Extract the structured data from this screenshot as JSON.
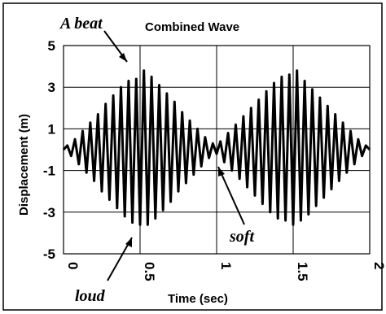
{
  "chart_data": {
    "type": "line",
    "title": "Combined Wave",
    "xlabel": "Time (sec)",
    "ylabel": "Displacement (m)",
    "xlim": [
      0,
      2
    ],
    "ylim": [
      -5,
      5
    ],
    "x_ticks": [
      0,
      0.5,
      1,
      1.5,
      2
    ],
    "x_tick_labels": [
      "0",
      "0.5",
      "1",
      "1.5",
      "2"
    ],
    "y_ticks": [
      5,
      3,
      1,
      -1,
      -3,
      -5
    ],
    "y_tick_labels": [
      "5",
      "3",
      "1",
      "-1",
      "-3",
      "-5"
    ],
    "grid": true,
    "series": [
      {
        "x": [
          0.0,
          0.025,
          0.05,
          0.075,
          0.1,
          0.125,
          0.15,
          0.175,
          0.2,
          0.225,
          0.25,
          0.275,
          0.3,
          0.325,
          0.35,
          0.375,
          0.4,
          0.425,
          0.45,
          0.475,
          0.5,
          0.525,
          0.55,
          0.575,
          0.6,
          0.625,
          0.65,
          0.675,
          0.7,
          0.725,
          0.75,
          0.775,
          0.8,
          0.825,
          0.85,
          0.875,
          0.9,
          0.925,
          0.95,
          0.975,
          1.0,
          1.025,
          1.05,
          1.075,
          1.1,
          1.125,
          1.15,
          1.175,
          1.2,
          1.225,
          1.25,
          1.275,
          1.3,
          1.325,
          1.35,
          1.375,
          1.4,
          1.425,
          1.45,
          1.475,
          1.5,
          1.525,
          1.55,
          1.575,
          1.6,
          1.625,
          1.65,
          1.675,
          1.7,
          1.725,
          1.75,
          1.775,
          1.8,
          1.825,
          1.85,
          1.875,
          1.9,
          1.925,
          1.95,
          1.975,
          2.0
        ],
        "y": [
          0.0,
          0.2,
          -0.3,
          0.5,
          -0.7,
          0.9,
          -1.1,
          1.3,
          -1.5,
          1.7,
          -2.0,
          2.2,
          -2.4,
          2.6,
          -2.8,
          3.0,
          -3.2,
          3.3,
          -3.5,
          3.4,
          -3.6,
          3.8,
          -3.6,
          3.5,
          -3.3,
          3.1,
          -2.9,
          2.7,
          -2.5,
          2.3,
          -2.0,
          1.8,
          -1.6,
          1.4,
          -1.2,
          1.0,
          -0.8,
          0.6,
          -0.4,
          0.3,
          -0.2,
          0.4,
          -0.6,
          0.8,
          -1.0,
          1.2,
          -1.4,
          1.6,
          -1.8,
          2.0,
          -2.2,
          2.4,
          -2.6,
          2.8,
          -3.0,
          3.2,
          -3.3,
          3.5,
          -3.4,
          3.6,
          -3.6,
          3.8,
          -3.4,
          3.3,
          -3.1,
          2.9,
          -2.7,
          2.5,
          -2.3,
          2.1,
          -1.9,
          1.7,
          -1.5,
          1.3,
          -1.1,
          0.9,
          -0.7,
          0.5,
          -0.3,
          0.2,
          0.0
        ]
      }
    ],
    "annotations": [
      {
        "text": "A beat",
        "x": 0.33,
        "y": 3.5
      },
      {
        "text": "loud",
        "x": 0.45,
        "y": -3.8
      },
      {
        "text": "soft",
        "x": 0.97,
        "y": -0.6
      }
    ]
  }
}
